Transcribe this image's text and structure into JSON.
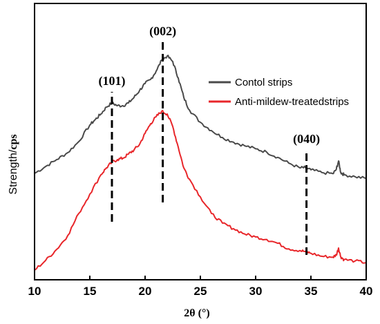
{
  "chart_data": {
    "type": "line",
    "title": "",
    "xlabel": "2θ (°)",
    "ylabel_prefix": "Strength/",
    "ylabel_unit": "cps",
    "xlim": [
      10,
      40
    ],
    "ylim": [
      0,
      100
    ],
    "xticks": [
      10,
      15,
      20,
      25,
      30,
      35,
      40
    ],
    "grid": false,
    "legend_position": "top-right",
    "series": [
      {
        "name": "Contol strips",
        "color": "#4a4a4a",
        "x": [
          10,
          11,
          12,
          13,
          14,
          15,
          15.5,
          16,
          16.5,
          17,
          17.5,
          18,
          18.5,
          19,
          19.5,
          20,
          20.5,
          21,
          21.5,
          22,
          22.5,
          23,
          23.5,
          24,
          25,
          26,
          27,
          28,
          29,
          30,
          31,
          32,
          33,
          34,
          34.5,
          35,
          36,
          37,
          37.3,
          37.5,
          37.7,
          38,
          39,
          40
        ],
        "y": [
          38.5,
          41,
          43.5,
          46,
          50,
          56,
          58,
          60,
          62.5,
          64,
          63,
          63,
          64,
          66,
          68.5,
          71,
          72.5,
          75.5,
          79.5,
          81,
          79,
          73,
          66,
          61.5,
          57,
          54,
          51.5,
          49.8,
          48.5,
          47.4,
          46.2,
          44.3,
          42.2,
          40.5,
          40.6,
          39.8,
          38.8,
          38.4,
          40,
          43,
          38.8,
          38,
          37.3,
          36.7
        ]
      },
      {
        "name": "Anti-mildew-treatedstrips",
        "color": "#e8262a",
        "x": [
          10,
          11,
          12,
          13,
          14,
          15,
          16,
          16.5,
          17,
          17.5,
          18,
          18.5,
          19,
          19.5,
          20,
          20.5,
          21,
          21.5,
          22,
          22.5,
          23,
          23.5,
          24,
          25,
          26,
          27,
          28,
          29,
          30,
          31,
          32,
          33,
          34,
          34.5,
          35,
          36,
          37,
          37.3,
          37.5,
          37.7,
          38,
          39,
          40
        ],
        "y": [
          3.5,
          7,
          11,
          16,
          24,
          31,
          38,
          40.5,
          42.5,
          43.5,
          44,
          45.5,
          47,
          49,
          53,
          56.5,
          59,
          61,
          60,
          55.5,
          48,
          40.5,
          36.5,
          30,
          24,
          20.5,
          18.5,
          16.6,
          15.5,
          14.6,
          13.2,
          11.2,
          10.6,
          10.2,
          9.6,
          8.5,
          8.2,
          9,
          11.5,
          8.3,
          7.3,
          6.8,
          6.2
        ]
      }
    ],
    "annotations": [
      {
        "label": "(101)",
        "x": 17,
        "y_from": 21,
        "y_to": 68
      },
      {
        "label": "(002)",
        "x": 21.6,
        "y_from": 28,
        "y_to": 86
      },
      {
        "label": "(040)",
        "x": 34.6,
        "y_from": 9,
        "y_to": 47
      }
    ]
  }
}
